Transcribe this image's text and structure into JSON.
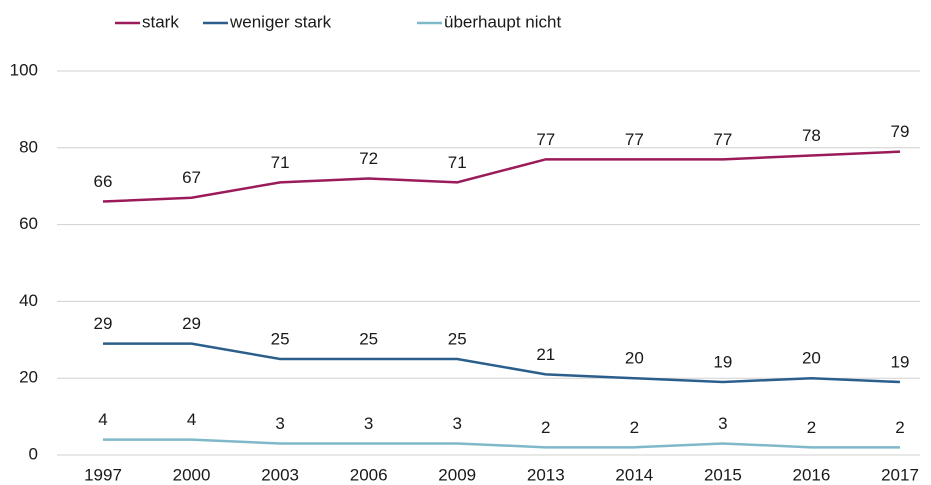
{
  "chart_data": {
    "type": "line",
    "categories": [
      "1997",
      "2000",
      "2003",
      "2006",
      "2009",
      "2013",
      "2014",
      "2015",
      "2016",
      "2017"
    ],
    "series": [
      {
        "name": "stark",
        "color": "#9b1b5a",
        "values": [
          66,
          67,
          71,
          72,
          71,
          77,
          77,
          77,
          78,
          79
        ]
      },
      {
        "name": "weniger stark",
        "color": "#2b5f8b",
        "values": [
          29,
          29,
          25,
          25,
          25,
          21,
          20,
          19,
          20,
          19
        ]
      },
      {
        "name": "überhaupt nicht",
        "color": "#7fb9c9",
        "values": [
          4,
          4,
          3,
          3,
          3,
          2,
          2,
          3,
          2,
          2
        ]
      }
    ],
    "ylim": [
      0,
      100
    ],
    "yticks": [
      0,
      20,
      40,
      60,
      80,
      100
    ],
    "grid": true,
    "legend": "top",
    "data_labels": true
  }
}
